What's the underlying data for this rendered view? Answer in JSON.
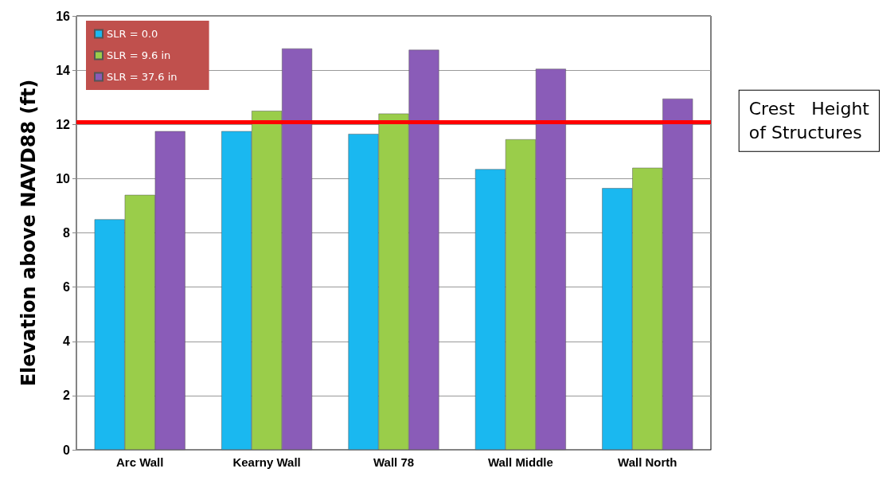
{
  "chart_data": {
    "type": "bar",
    "ylabel": "Elevation above NAVD88 (ft)",
    "categories": [
      "Arc Wall",
      "Kearny Wall",
      "Wall 78",
      "Wall Middle",
      "Wall North"
    ],
    "series": [
      {
        "name": "SLR = 0.0",
        "color": "#1ab8f0",
        "values": [
          8.5,
          11.75,
          11.65,
          10.35,
          9.65
        ]
      },
      {
        "name": "SLR = 9.6 in",
        "color": "#9acd4a",
        "values": [
          9.4,
          12.5,
          12.4,
          11.45,
          10.4
        ]
      },
      {
        "name": "SLR = 37.6 in",
        "color": "#8a5cb8",
        "values": [
          11.75,
          14.8,
          14.75,
          14.05,
          12.95
        ]
      }
    ],
    "ylim": [
      0,
      16
    ],
    "yticks": [
      0,
      2,
      4,
      6,
      8,
      10,
      12,
      14,
      16
    ],
    "grid": "y",
    "legend": "top left",
    "ref_lines": [
      {
        "axis": "y",
        "value": 12.1,
        "label": "Crest   Height\nof Structures",
        "color": "#ff0000"
      }
    ]
  }
}
